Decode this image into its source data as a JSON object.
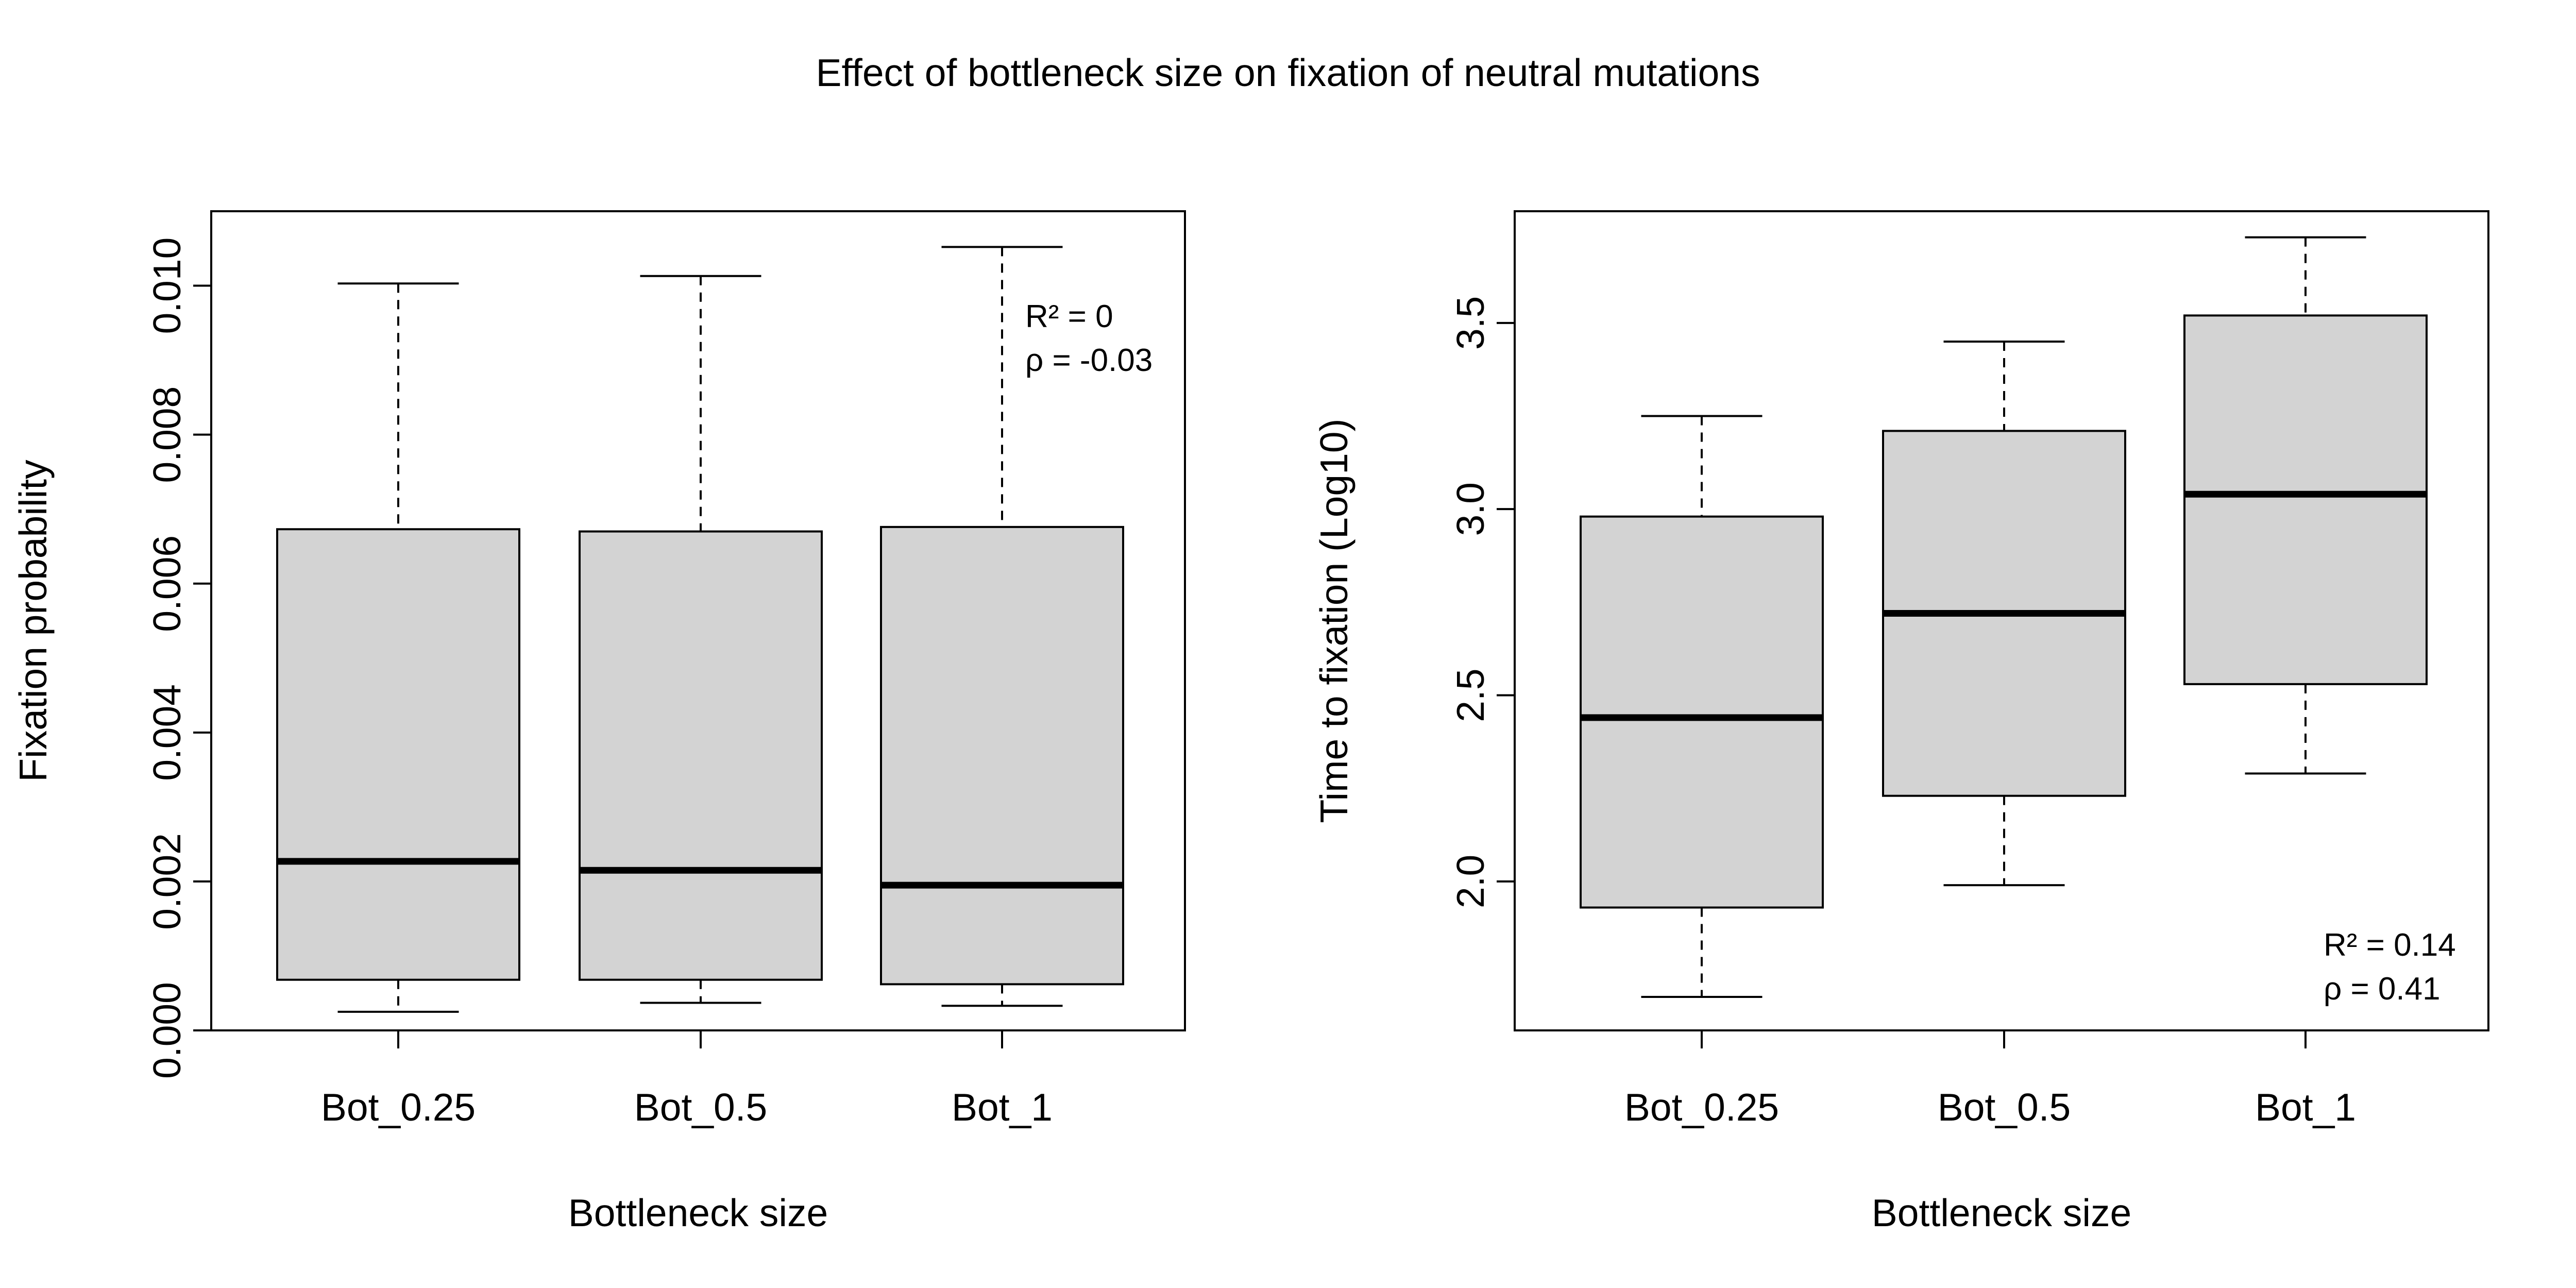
{
  "title": "Effect of bottleneck size on fixation of neutral mutations",
  "colors": {
    "box_fill": "#d3d3d3",
    "stroke": "#000000",
    "background": "#ffffff"
  },
  "chart_data": [
    {
      "type": "boxplot",
      "xlabel": "Bottleneck size",
      "ylabel": "Fixation probability",
      "categories": [
        "Bot_0.25",
        "Bot_0.5",
        "Bot_1"
      ],
      "ylim": [
        0,
        0.011
      ],
      "yticks": [
        0,
        0.002,
        0.004,
        0.006,
        0.008,
        0.01
      ],
      "ytick_labels": [
        "0.000",
        "0.002",
        "0.004",
        "0.006",
        "0.008",
        "0.010"
      ],
      "boxes": [
        {
          "min": 0.00025,
          "q1": 0.00068,
          "median": 0.00227,
          "q3": 0.00673,
          "max": 0.01003
        },
        {
          "min": 0.00037,
          "q1": 0.00068,
          "median": 0.00215,
          "q3": 0.0067,
          "max": 0.01013
        },
        {
          "min": 0.00033,
          "q1": 0.00062,
          "median": 0.00195,
          "q3": 0.00676,
          "max": 0.01052
        }
      ],
      "annotation": {
        "lines": [
          "R² = 0",
          "ρ =  -0.03"
        ],
        "position": "top-right"
      },
      "grid": false
    },
    {
      "type": "boxplot",
      "xlabel": "Bottleneck size",
      "ylabel": "Time to fixation (Log10)",
      "categories": [
        "Bot_0.25",
        "Bot_0.5",
        "Bot_1"
      ],
      "ylim": [
        1.6,
        3.8
      ],
      "yticks": [
        2.0,
        2.5,
        3.0,
        3.5
      ],
      "ytick_labels": [
        "2.0",
        "2.5",
        "3.0",
        "3.5"
      ],
      "boxes": [
        {
          "min": 1.69,
          "q1": 1.93,
          "median": 2.44,
          "q3": 2.98,
          "max": 3.25
        },
        {
          "min": 1.99,
          "q1": 2.23,
          "median": 2.72,
          "q3": 3.21,
          "max": 3.45
        },
        {
          "min": 2.29,
          "q1": 2.53,
          "median": 3.04,
          "q3": 3.52,
          "max": 3.73
        }
      ],
      "annotation": {
        "lines": [
          "R² = 0.14",
          "ρ =  0.41"
        ],
        "position": "bottom-right"
      },
      "grid": false
    }
  ]
}
